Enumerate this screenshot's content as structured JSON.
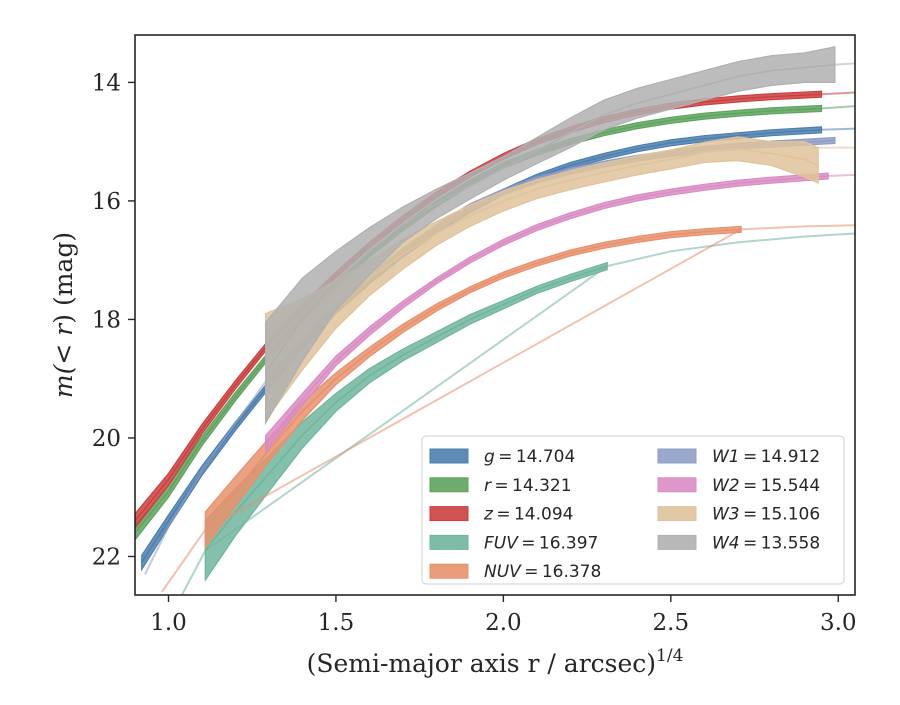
{
  "chart_data": {
    "type": "line",
    "title": "",
    "xlabel": "(Semi-major axis r / arcsec)",
    "xlabel_sup": "1/4",
    "ylabel_parts": [
      "m(",
      "< r",
      ") (mag)"
    ],
    "xlim": [
      0.9,
      3.05
    ],
    "ylim": [
      22.65,
      13.2
    ],
    "y_inverted": true,
    "xticks": [
      "1.0",
      "1.5",
      "2.0",
      "2.5",
      "3.0"
    ],
    "xtick_values": [
      1.0,
      1.5,
      2.0,
      2.5,
      3.0
    ],
    "yticks": [
      "14",
      "16",
      "18",
      "20",
      "22"
    ],
    "ytick_values": [
      14,
      16,
      18,
      20,
      22
    ],
    "grid": false,
    "legend_position": "lower-right",
    "series": [
      {
        "name": "g",
        "label_value": "14.704",
        "color": "#4c7fae",
        "band": true,
        "x": [
          0.92,
          1.0,
          1.1,
          1.2,
          1.3,
          1.4,
          1.5,
          1.6,
          1.7,
          1.8,
          1.9,
          2.0,
          2.1,
          2.2,
          2.3,
          2.4,
          2.5,
          2.6,
          2.7,
          2.8,
          2.95
        ],
        "y": [
          22.1,
          21.4,
          20.55,
          19.8,
          19.1,
          18.45,
          17.85,
          17.35,
          16.9,
          16.5,
          16.15,
          15.85,
          15.6,
          15.4,
          15.25,
          15.12,
          15.02,
          14.95,
          14.9,
          14.85,
          14.8
        ],
        "w": [
          0.12,
          0.1,
          0.08,
          0.07,
          0.06,
          0.05,
          0.05,
          0.05,
          0.05,
          0.05,
          0.05,
          0.05,
          0.05,
          0.05,
          0.05,
          0.05,
          0.05,
          0.05,
          0.05,
          0.05,
          0.05
        ],
        "ext_x": [
          2.95,
          3.05
        ],
        "ext_y": [
          14.8,
          14.78
        ]
      },
      {
        "name": "r",
        "label_value": "14.321",
        "color": "#5ea35e",
        "band": true,
        "x": [
          0.9,
          1.0,
          1.1,
          1.2,
          1.3,
          1.4,
          1.5,
          1.6,
          1.7,
          1.8,
          1.9,
          2.0,
          2.1,
          2.2,
          2.3,
          2.4,
          2.5,
          2.6,
          2.7,
          2.8,
          2.95
        ],
        "y": [
          21.6,
          20.9,
          20.05,
          19.3,
          18.6,
          17.95,
          17.4,
          16.9,
          16.45,
          16.05,
          15.7,
          15.4,
          15.18,
          15.0,
          14.85,
          14.73,
          14.64,
          14.57,
          14.52,
          14.48,
          14.44
        ],
        "w": [
          0.12,
          0.1,
          0.08,
          0.07,
          0.06,
          0.05,
          0.05,
          0.05,
          0.05,
          0.05,
          0.05,
          0.05,
          0.05,
          0.05,
          0.05,
          0.05,
          0.05,
          0.05,
          0.05,
          0.05,
          0.05
        ],
        "ext_x": [
          2.95,
          3.05
        ],
        "ext_y": [
          14.44,
          14.4
        ]
      },
      {
        "name": "z",
        "label_value": "14.094",
        "color": "#cc3f3f",
        "band": true,
        "x": [
          0.9,
          1.0,
          1.1,
          1.2,
          1.3,
          1.4,
          1.5,
          1.6,
          1.7,
          1.8,
          1.9,
          2.0,
          2.1,
          2.2,
          2.3,
          2.4,
          2.5,
          2.6,
          2.7,
          2.8,
          2.95
        ],
        "y": [
          21.4,
          20.7,
          19.85,
          19.1,
          18.4,
          17.8,
          17.25,
          16.75,
          16.3,
          15.9,
          15.55,
          15.25,
          15.0,
          14.8,
          14.63,
          14.5,
          14.4,
          14.33,
          14.28,
          14.24,
          14.2
        ],
        "w": [
          0.12,
          0.1,
          0.08,
          0.07,
          0.06,
          0.05,
          0.05,
          0.05,
          0.05,
          0.05,
          0.05,
          0.05,
          0.05,
          0.05,
          0.05,
          0.05,
          0.05,
          0.05,
          0.05,
          0.05,
          0.05
        ],
        "ext_x": [
          2.95,
          3.05
        ],
        "ext_y": [
          14.2,
          14.17
        ]
      },
      {
        "name": "FUV",
        "label_value": "16.397",
        "color": "#6fb59c",
        "band": true,
        "x": [
          1.11,
          1.2,
          1.3,
          1.4,
          1.5,
          1.6,
          1.7,
          1.8,
          1.9,
          2.0,
          2.1,
          2.2,
          2.31
        ],
        "y": [
          21.9,
          21.25,
          20.6,
          19.95,
          19.4,
          18.95,
          18.6,
          18.3,
          18.0,
          17.75,
          17.5,
          17.3,
          17.1
        ],
        "w": [
          0.5,
          0.4,
          0.3,
          0.22,
          0.15,
          0.12,
          0.1,
          0.09,
          0.08,
          0.07,
          0.06,
          0.06,
          0.06
        ],
        "ext_x": [
          1.04,
          1.11,
          2.31,
          2.5,
          2.7,
          2.9,
          3.05
        ],
        "ext_y": [
          22.65,
          21.9,
          17.1,
          16.85,
          16.7,
          16.6,
          16.55
        ]
      },
      {
        "name": "NUV",
        "label_value": "16.378",
        "color": "#e8906c",
        "band": true,
        "x": [
          1.11,
          1.2,
          1.3,
          1.4,
          1.5,
          1.6,
          1.7,
          1.8,
          1.9,
          2.0,
          2.1,
          2.2,
          2.3,
          2.4,
          2.5,
          2.6,
          2.71
        ],
        "y": [
          21.55,
          20.9,
          20.2,
          19.55,
          19.0,
          18.55,
          18.15,
          17.8,
          17.5,
          17.25,
          17.05,
          16.88,
          16.75,
          16.65,
          16.57,
          16.52,
          16.48
        ],
        "w": [
          0.3,
          0.25,
          0.2,
          0.15,
          0.1,
          0.08,
          0.07,
          0.06,
          0.05,
          0.05,
          0.05,
          0.05,
          0.05,
          0.05,
          0.05,
          0.05,
          0.05
        ],
        "ext_x": [
          0.98,
          1.11,
          2.71,
          2.9,
          3.05
        ],
        "ext_y": [
          22.6,
          21.55,
          16.48,
          16.43,
          16.41
        ]
      },
      {
        "name": "W1",
        "label_value": "14.912",
        "color": "#8f9ec6",
        "band": true,
        "x": [
          1.29,
          1.4,
          1.5,
          1.6,
          1.7,
          1.8,
          1.9,
          2.0,
          2.1,
          2.2,
          2.3,
          2.4,
          2.5,
          2.6,
          2.7,
          2.8,
          2.99
        ],
        "y": [
          19.05,
          18.4,
          17.8,
          17.3,
          16.85,
          16.45,
          16.1,
          15.85,
          15.65,
          15.5,
          15.38,
          15.28,
          15.2,
          15.13,
          15.08,
          15.04,
          14.98
        ],
        "w": [
          0.08,
          0.07,
          0.06,
          0.06,
          0.05,
          0.05,
          0.05,
          0.05,
          0.05,
          0.05,
          0.05,
          0.05,
          0.05,
          0.05,
          0.05,
          0.05,
          0.05
        ],
        "ext_x": [
          0.93,
          1.0,
          1.1,
          1.2,
          1.29
        ],
        "ext_y": [
          22.3,
          21.5,
          20.55,
          19.75,
          19.05
        ]
      },
      {
        "name": "W2",
        "label_value": "15.544",
        "color": "#d98cc3",
        "band": true,
        "x": [
          1.29,
          1.4,
          1.5,
          1.6,
          1.7,
          1.8,
          1.9,
          2.0,
          2.1,
          2.2,
          2.3,
          2.4,
          2.5,
          2.6,
          2.7,
          2.8,
          2.97
        ],
        "y": [
          20.1,
          19.35,
          18.7,
          18.2,
          17.75,
          17.35,
          17.0,
          16.7,
          16.45,
          16.25,
          16.08,
          15.95,
          15.85,
          15.77,
          15.7,
          15.65,
          15.58
        ],
        "w": [
          0.14,
          0.1,
          0.08,
          0.07,
          0.06,
          0.05,
          0.05,
          0.05,
          0.05,
          0.05,
          0.05,
          0.05,
          0.05,
          0.05,
          0.05,
          0.05,
          0.05
        ],
        "ext_x": [
          2.97,
          3.05
        ],
        "ext_y": [
          15.58,
          15.56
        ]
      },
      {
        "name": "W3",
        "label_value": "15.106",
        "color": "#dfc39b",
        "band": true,
        "x": [
          1.29,
          1.4,
          1.5,
          1.6,
          1.7,
          1.8,
          1.9,
          2.0,
          2.1,
          2.2,
          2.3,
          2.4,
          2.5,
          2.6,
          2.7,
          2.8,
          2.85,
          2.9,
          2.94
        ],
        "y": [
          18.8,
          18.25,
          17.75,
          17.3,
          16.9,
          16.55,
          16.25,
          16.0,
          15.8,
          15.65,
          15.52,
          15.4,
          15.3,
          15.18,
          15.12,
          15.2,
          15.25,
          15.3,
          15.4
        ],
        "w": [
          0.9,
          0.6,
          0.4,
          0.3,
          0.25,
          0.2,
          0.18,
          0.17,
          0.16,
          0.16,
          0.16,
          0.16,
          0.16,
          0.17,
          0.2,
          0.2,
          0.25,
          0.3,
          0.3
        ],
        "ext_x": [
          2.94,
          3.05
        ],
        "ext_y": [
          15.1,
          15.1
        ]
      },
      {
        "name": "W4",
        "label_value": "13.558",
        "color": "#b0b0b0",
        "band": true,
        "x": [
          1.29,
          1.4,
          1.5,
          1.6,
          1.7,
          1.8,
          1.9,
          2.0,
          2.1,
          2.2,
          2.3,
          2.4,
          2.5,
          2.6,
          2.7,
          2.8,
          2.9,
          2.99
        ],
        "y": [
          18.9,
          18.0,
          17.35,
          16.85,
          16.4,
          16.05,
          15.75,
          15.45,
          15.15,
          14.85,
          14.55,
          14.35,
          14.2,
          14.05,
          13.9,
          13.8,
          13.75,
          13.7
        ],
        "w": [
          0.85,
          0.7,
          0.5,
          0.4,
          0.3,
          0.25,
          0.22,
          0.2,
          0.22,
          0.25,
          0.25,
          0.25,
          0.25,
          0.25,
          0.25,
          0.25,
          0.25,
          0.3
        ],
        "ext_x": [
          2.99,
          3.05
        ],
        "ext_y": [
          13.7,
          13.68
        ]
      }
    ],
    "legend": [
      {
        "name": "g",
        "value": "14.704",
        "color": "#4c7fae"
      },
      {
        "name": "r",
        "value": "14.321",
        "color": "#5ea35e"
      },
      {
        "name": "z",
        "value": "14.094",
        "color": "#cc3f3f"
      },
      {
        "name": "FUV",
        "value": "16.397",
        "color": "#6fb59c"
      },
      {
        "name": "NUV",
        "value": "16.378",
        "color": "#e8906c"
      },
      {
        "name": "W1",
        "value": "14.912",
        "color": "#8f9ec6"
      },
      {
        "name": "W2",
        "value": "15.544",
        "color": "#d98cc3"
      },
      {
        "name": "W3",
        "value": "15.106",
        "color": "#dfc39b"
      },
      {
        "name": "W4",
        "value": "13.558",
        "color": "#b0b0b0"
      }
    ]
  }
}
